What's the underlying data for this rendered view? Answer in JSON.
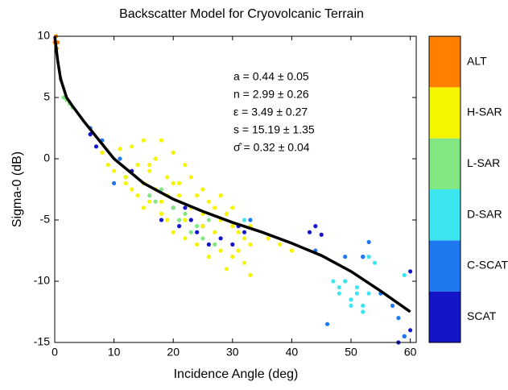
{
  "chart_data": {
    "type": "scatter",
    "title": "Backscatter Model for Cryovolcanic Terrain",
    "x_label": "Incidence Angle (deg)",
    "y_label": "Sigma-0 (dB)",
    "xlim": [
      0,
      61
    ],
    "xticks": [
      0,
      10,
      20,
      30,
      40,
      50,
      60
    ],
    "ylim": [
      -15,
      10
    ],
    "yticks": [
      -15,
      -10,
      -5,
      0,
      5,
      10
    ],
    "annotations": [
      "a = 0.44 ± 0.05",
      "n = 2.99 ± 0.26",
      "ε = 3.49 ± 0.27",
      "s = 15.19 ± 1.35",
      "σ̂ = 0.32 ± 0.04"
    ],
    "series": [
      {
        "name": "SCAT",
        "color": "#1414c8",
        "x": [
          6,
          7,
          13,
          18,
          20,
          21,
          22,
          23,
          24,
          25,
          26,
          28,
          30,
          31,
          32,
          43,
          44,
          45,
          52,
          58,
          59,
          60,
          60
        ],
        "y": [
          2,
          1,
          -1,
          -5,
          -4,
          -5.5,
          -4,
          -5,
          -6,
          -5.5,
          -7,
          -6.5,
          -7,
          -5.5,
          -6,
          -6,
          -5.5,
          -6.2,
          -8,
          -15,
          -14.5,
          -14,
          -9.2
        ]
      },
      {
        "name": "C-SCAT",
        "color": "#1e78f0",
        "x": [
          6,
          8,
          10,
          11,
          12,
          33,
          44,
          46,
          49,
          52,
          53,
          55,
          57,
          58,
          59
        ],
        "y": [
          2.5,
          1.5,
          -2,
          0,
          -1.5,
          -5,
          -7.5,
          -13.5,
          -8,
          -8,
          -6.8,
          -11,
          -12,
          -13,
          -14.5
        ]
      },
      {
        "name": "D-SAR",
        "color": "#3ce6f0",
        "x": [
          32,
          47,
          48,
          48,
          49,
          50,
          50,
          51,
          51,
          52,
          52,
          53,
          53,
          54,
          59
        ],
        "y": [
          -5,
          -10,
          -10.5,
          -11,
          -10,
          -11.5,
          -12,
          -10.5,
          -11,
          -12,
          -12.5,
          -11,
          -8,
          -8.5,
          -9.5
        ]
      },
      {
        "name": "L-SAR",
        "color": "#82e682",
        "x": [
          1,
          1.5,
          2,
          2.5,
          3,
          15,
          16,
          17,
          18,
          20,
          21,
          22,
          23,
          24,
          25,
          26,
          27
        ],
        "y": [
          6.5,
          5,
          4.8,
          4.5,
          4.2,
          -2,
          -3,
          -3.5,
          -2.5,
          -4,
          -5,
          -4.5,
          -6,
          -5.5,
          -6.5,
          -5,
          -7
        ]
      },
      {
        "name": "H-SAR",
        "color": "#f5f500",
        "x": [
          8,
          9,
          10,
          11,
          12,
          13,
          13,
          14,
          14,
          15,
          15,
          16,
          16,
          17,
          17,
          18,
          18,
          19,
          19,
          20,
          20,
          21,
          21,
          22,
          22,
          23,
          23,
          24,
          24,
          25,
          25,
          26,
          26,
          27,
          27,
          28,
          28,
          29,
          29,
          30,
          30,
          31,
          31,
          32,
          32,
          33,
          33,
          12,
          15,
          18,
          20,
          22,
          25,
          28,
          30,
          33,
          36,
          38,
          40,
          16,
          19
        ],
        "y": [
          0.5,
          -0.5,
          -1,
          0.8,
          -1.5,
          1,
          -2.5,
          -0.5,
          -3,
          1.5,
          -4,
          -1,
          -3.5,
          0,
          -2.5,
          1.5,
          -4.5,
          -1.5,
          -5,
          0.5,
          -6,
          -2,
          -3,
          -0.5,
          -6.5,
          -1.5,
          -4,
          -3,
          -7,
          -2.5,
          -5.5,
          -3.5,
          -8,
          -4,
          -6,
          -5,
          -7.5,
          -4.5,
          -9,
          -5.5,
          -8,
          -6,
          -7.5,
          -6.5,
          -8.5,
          -7,
          -9.5,
          -2,
          -2,
          -3.5,
          -2,
          -5,
          -4.5,
          -3,
          -4,
          -5.5,
          -6.5,
          -7,
          -7.5,
          -0.5,
          -3
        ]
      },
      {
        "name": "ALT",
        "color": "#ff8000",
        "x": [
          0,
          0.2,
          0.3,
          0.5
        ],
        "y": [
          9.5,
          10,
          9,
          9.5
        ]
      }
    ],
    "fit": {
      "color": "#000000",
      "x": [
        0,
        0.5,
        1,
        2,
        3,
        5,
        8,
        10,
        15,
        20,
        25,
        30,
        35,
        40,
        45,
        50,
        55,
        60
      ],
      "y": [
        10,
        8,
        6.5,
        5,
        4.3,
        3,
        1.2,
        0,
        -2,
        -3.3,
        -4.3,
        -5.2,
        -6,
        -6.9,
        -7.9,
        -9.2,
        -10.8,
        -12.5
      ]
    }
  }
}
